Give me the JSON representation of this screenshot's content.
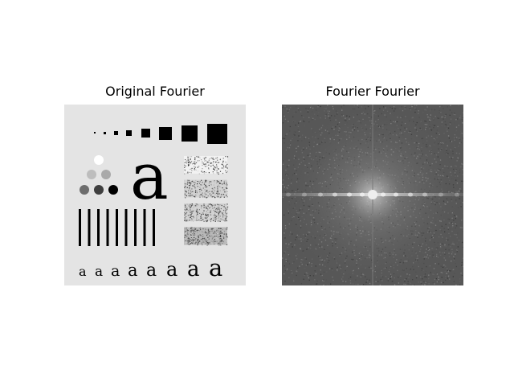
{
  "figure": {
    "left_title": "Original Fourier",
    "right_title": "Fourier Fourier"
  },
  "test_pattern": {
    "large_glyph": "a",
    "small_glyphs": [
      "a",
      "a",
      "a",
      "a",
      "a",
      "a",
      "a",
      "a"
    ],
    "square_count": 8,
    "vertical_bar_count": 9,
    "noise_rect_count": 4,
    "circle_levels": [
      "white",
      "light-gray",
      "light-gray",
      "dark-gray",
      "darker-gray",
      "black"
    ]
  },
  "spectrum": {
    "description_colors": {
      "background": "#575757",
      "center": "#e0e0e0"
    }
  }
}
